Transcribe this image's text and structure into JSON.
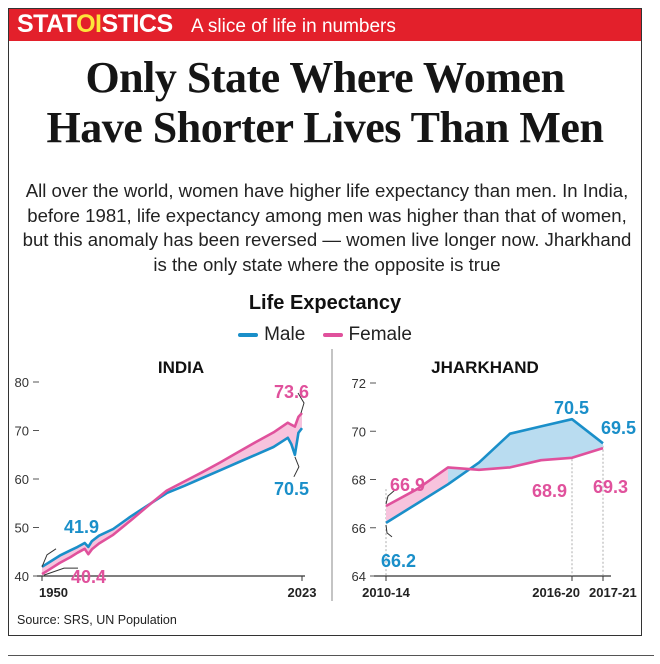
{
  "header": {
    "brand_pre": "STAT",
    "brand_hl": "OI",
    "brand_post": "STICS",
    "tagline": "A slice of life in numbers"
  },
  "headline": {
    "line1": "Only State Where Women",
    "line2": "Have Shorter Lives Than Men"
  },
  "intro": "All over the world, women have higher life expectancy than men. In India, before 1981, life expectancy among men was higher than that of women, but this anomaly has been reversed — women live longer now. Jharkhand is the only state where the opposite is true",
  "chart_title": "Life Expectancy",
  "legend": [
    {
      "label": "Male",
      "color": "#1a8fc9"
    },
    {
      "label": "Female",
      "color": "#e0519c"
    }
  ],
  "colors": {
    "male": "#1a8fc9",
    "female": "#e0519c",
    "gap_female": "#f7c3dd",
    "gap_male": "#b9dcf0"
  },
  "source": "Source: SRS, UN Population",
  "chart_data": [
    {
      "type": "line",
      "title": "INDIA",
      "ylim": [
        40,
        80
      ],
      "yticks": [
        40,
        50,
        60,
        70,
        80
      ],
      "xlim": [
        1950,
        2023
      ],
      "xtick_labels": [
        "1950",
        "2023"
      ],
      "series": [
        {
          "name": "Male",
          "x": [
            1950,
            1952,
            1955,
            1958,
            1960,
            1962,
            1963,
            1964,
            1966,
            1970,
            1975,
            1980,
            1985,
            1990,
            1995,
            2000,
            2005,
            2010,
            2015,
            2019,
            2020,
            2021,
            2022,
            2023
          ],
          "values": [
            41.9,
            42.8,
            44.2,
            45.3,
            46.0,
            46.8,
            46.0,
            47.2,
            48.3,
            49.7,
            52.3,
            54.7,
            57.1,
            58.6,
            60.2,
            61.8,
            63.4,
            65.0,
            66.6,
            68.5,
            67.2,
            65.0,
            69.5,
            70.5
          ]
        },
        {
          "name": "Female",
          "x": [
            1950,
            1952,
            1955,
            1958,
            1960,
            1962,
            1963,
            1964,
            1966,
            1970,
            1975,
            1980,
            1985,
            1990,
            1995,
            2000,
            2005,
            2010,
            2015,
            2019,
            2020,
            2021,
            2022,
            2023
          ],
          "values": [
            40.4,
            41.3,
            42.7,
            43.9,
            44.8,
            45.6,
            44.5,
            45.5,
            46.7,
            48.5,
            51.5,
            54.6,
            57.6,
            59.5,
            61.4,
            63.4,
            65.5,
            67.6,
            69.6,
            71.6,
            71.2,
            70.8,
            72.8,
            73.6
          ]
        }
      ],
      "labels": {
        "male_start": "41.9",
        "female_start": "40.4",
        "female_end": "73.6",
        "male_end": "70.5"
      }
    },
    {
      "type": "line",
      "title": "JHARKHAND",
      "ylim": [
        64,
        72
      ],
      "yticks": [
        64,
        66,
        68,
        70,
        72
      ],
      "categories": [
        "2010-14",
        "2011-15",
        "2012-16",
        "2013-17",
        "2014-18",
        "2015-19",
        "2016-20",
        "2017-21"
      ],
      "xtick_labels": [
        "2010-14",
        "2016-20",
        "2017-21"
      ],
      "series": [
        {
          "name": "Male",
          "values": [
            66.2,
            67.0,
            67.8,
            68.7,
            69.9,
            70.2,
            70.5,
            69.5
          ]
        },
        {
          "name": "Female",
          "values": [
            66.9,
            67.6,
            68.5,
            68.4,
            68.5,
            68.8,
            68.9,
            69.3
          ]
        }
      ],
      "labels": {
        "male_start": "66.2",
        "female_start": "66.9",
        "male_peak": "70.5",
        "male_end": "69.5",
        "female_peak": "68.9",
        "female_end": "69.3"
      }
    }
  ]
}
